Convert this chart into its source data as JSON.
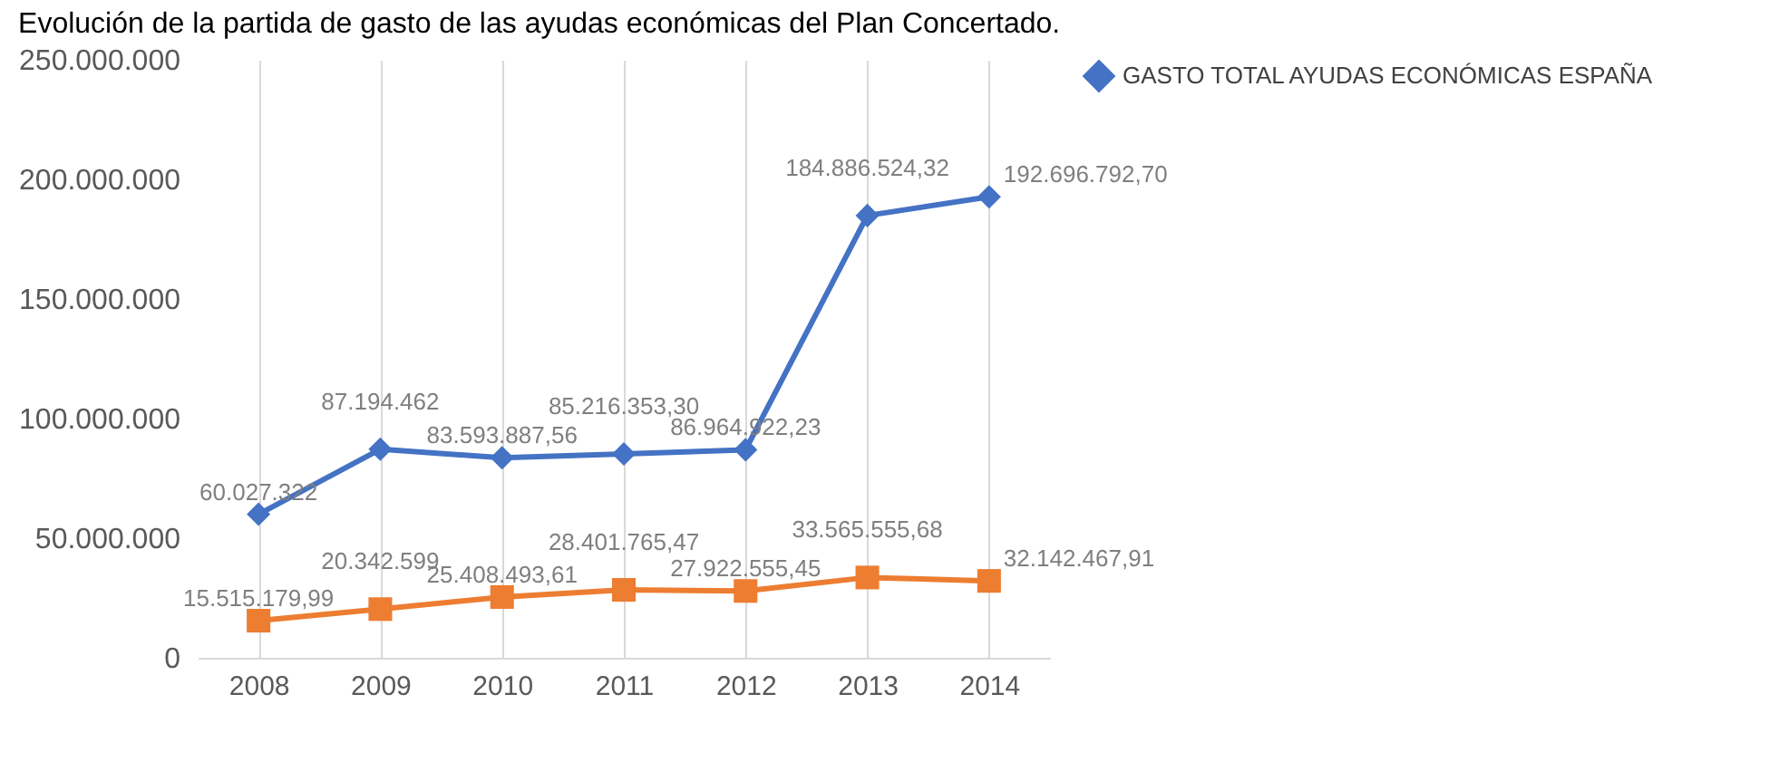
{
  "chart_data": {
    "type": "line",
    "title": "Evolución de la partida de gasto de las ayudas económicas del Plan Concertado.",
    "categories": [
      "2008",
      "2009",
      "2010",
      "2011",
      "2012",
      "2013",
      "2014"
    ],
    "series": [
      {
        "name": "GASTO TOTAL AYUDAS ECONÓMICAS ESPAÑA",
        "color": "#4472c4",
        "marker": "diamond",
        "values": [
          60027322,
          87194462,
          83593887.56,
          85216353.3,
          86964922.23,
          184886524.32,
          192696792.7
        ],
        "value_labels": [
          "60.027.322",
          "87.194.462",
          "83.593.887,56",
          "85.216.353,30",
          "86.964.922,23",
          "184.886.524,32",
          "192.696.792,70"
        ]
      },
      {
        "color": "#ed7d31",
        "marker": "square",
        "values": [
          15515179.99,
          20342599,
          25408493.61,
          28401765.47,
          27922555.45,
          33565555.68,
          32142467.91
        ],
        "value_labels": [
          "15.515.179,99",
          "20.342.599",
          "25.408.493,61",
          "28.401.765,47",
          "27.922.555,45",
          "33.565.555,68",
          "32.142.467,91"
        ]
      }
    ],
    "ylim": [
      0,
      250000000
    ],
    "yticks": [
      {
        "value": 0,
        "label": "0"
      },
      {
        "value": 50000000,
        "label": "50.000.000"
      },
      {
        "value": 100000000,
        "label": "100.000.000"
      },
      {
        "value": 150000000,
        "label": "150.000.000"
      },
      {
        "value": 200000000,
        "label": "200.000.000"
      },
      {
        "value": 250000000,
        "label": "250.000.000"
      }
    ],
    "grid": "x",
    "legend": "right",
    "line_style": "solid"
  }
}
